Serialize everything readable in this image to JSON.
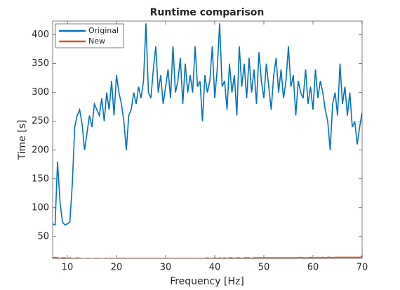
{
  "chart_data": {
    "type": "line",
    "title": "Runtime comparison",
    "x_label": "Frequency [Hz]",
    "y_label": "Time [s]",
    "x": [
      7,
      7.5,
      8,
      8.5,
      9,
      9.5,
      10,
      10.5,
      11,
      11.5,
      12,
      12.5,
      13,
      13.5,
      14,
      14.5,
      15,
      15.5,
      16,
      16.5,
      17,
      17.5,
      18,
      18.5,
      19,
      19.5,
      20,
      20.5,
      21,
      21.5,
      22,
      22.5,
      23,
      23.5,
      24,
      24.5,
      25,
      25.5,
      26,
      26.5,
      27,
      27.5,
      28,
      28.5,
      29,
      29.5,
      30,
      30.5,
      31,
      31.5,
      32,
      32.5,
      33,
      33.5,
      34,
      34.5,
      35,
      35.5,
      36,
      36.5,
      37,
      37.5,
      38,
      38.5,
      39,
      39.5,
      40,
      40.5,
      41,
      41.5,
      42,
      42.5,
      43,
      43.5,
      44,
      44.5,
      45,
      45.5,
      46,
      46.5,
      47,
      47.5,
      48,
      48.5,
      49,
      49.5,
      50,
      50.5,
      51,
      51.5,
      52,
      52.5,
      53,
      53.5,
      54,
      54.5,
      55,
      55.5,
      56,
      56.5,
      57,
      57.5,
      58,
      58.5,
      59,
      59.5,
      60,
      60.5,
      61,
      61.5,
      62,
      62.5,
      63,
      63.5,
      64,
      64.5,
      65,
      65.5,
      66,
      66.5,
      67,
      67.5,
      68,
      68.5,
      69,
      69.5,
      70
    ],
    "series": [
      {
        "name": "Original",
        "color": "#0072bd",
        "values": [
          72,
          70,
          180,
          110,
          75,
          70,
          72,
          75,
          140,
          240,
          260,
          270,
          245,
          200,
          230,
          260,
          240,
          280,
          270,
          260,
          290,
          250,
          300,
          270,
          320,
          260,
          330,
          300,
          280,
          250,
          200,
          260,
          270,
          300,
          280,
          310,
          290,
          320,
          420,
          300,
          290,
          340,
          380,
          300,
          330,
          280,
          310,
          340,
          290,
          380,
          300,
          320,
          360,
          280,
          350,
          300,
          330,
          300,
          380,
          310,
          320,
          250,
          330,
          300,
          320,
          380,
          290,
          340,
          420,
          310,
          320,
          270,
          350,
          300,
          330,
          260,
          380,
          310,
          350,
          290,
          360,
          300,
          340,
          280,
          370,
          320,
          290,
          350,
          310,
          270,
          330,
          360,
          300,
          340,
          290,
          320,
          380,
          310,
          330,
          260,
          320,
          300,
          290,
          340,
          280,
          310,
          270,
          340,
          290,
          320,
          300,
          270,
          250,
          200,
          280,
          300,
          260,
          350,
          280,
          310,
          260,
          300,
          240,
          250,
          210,
          240,
          265
        ]
      },
      {
        "name": "New",
        "color": "#d95319",
        "values": [
          13,
          14,
          13,
          12,
          13,
          13,
          12,
          13,
          12,
          12,
          13,
          12,
          12,
          11,
          12,
          12,
          11,
          12,
          12,
          12,
          11,
          12,
          12,
          12,
          12,
          11,
          12,
          12,
          12,
          12,
          12,
          12,
          12,
          12,
          12,
          12,
          12,
          12,
          12,
          12,
          12,
          12,
          12,
          12,
          12,
          12,
          12,
          12,
          12,
          12,
          12,
          12,
          12,
          12,
          12,
          12,
          12,
          12,
          12,
          12,
          12,
          12,
          12,
          13,
          12,
          12,
          13,
          12,
          13,
          12,
          13,
          12,
          13,
          13,
          12,
          13,
          13,
          12,
          13,
          13,
          13,
          12,
          13,
          13,
          13,
          13,
          13,
          13,
          13,
          13,
          13,
          13,
          13,
          13,
          13,
          13,
          13,
          13,
          13,
          13,
          13,
          14,
          13,
          13,
          13,
          14,
          13,
          13,
          14,
          13,
          14,
          13,
          14,
          14,
          13,
          14,
          14,
          14,
          14,
          14,
          14,
          14,
          14,
          14,
          14,
          14,
          15
        ]
      }
    ],
    "xlim": [
      7,
      70
    ],
    "xticks": [
      10,
      20,
      30,
      40,
      50,
      60,
      70
    ],
    "ylim": [
      12,
      424
    ],
    "yticks": [
      50,
      100,
      150,
      200,
      250,
      300,
      350,
      400
    ],
    "legend": "upper left"
  }
}
